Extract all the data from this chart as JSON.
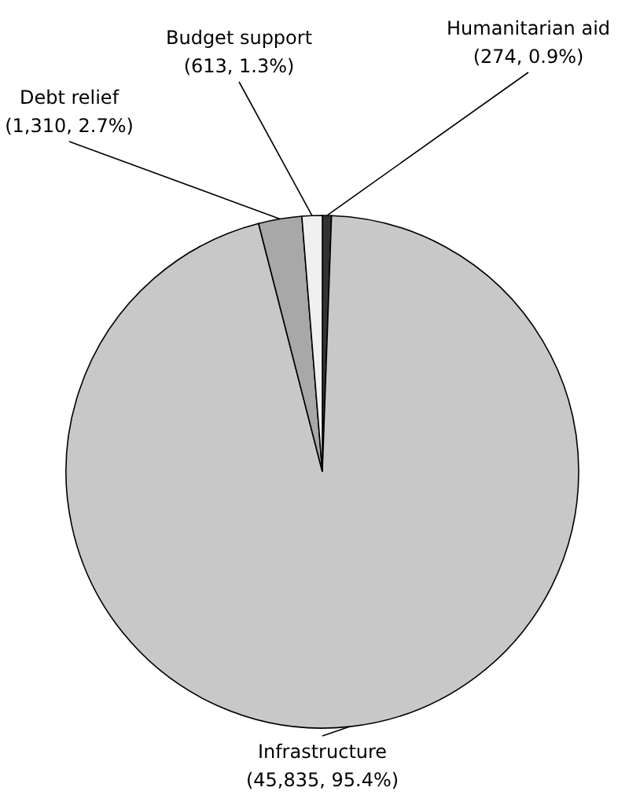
{
  "chart_data": {
    "type": "pie",
    "categories": [
      "Humanitarian aid",
      "Infrastructure",
      "Debt relief",
      "Budget support"
    ],
    "values": [
      274,
      45835,
      1310,
      613
    ],
    "value_labels": [
      "(274, 0.9%)",
      "(45,835, 95.4%)",
      "(1,310, 2.7%)",
      "(613, 1.3%)"
    ],
    "colors": [
      "#333333",
      "#c8c8c8",
      "#a8a8a8",
      "#f0f0f0"
    ]
  }
}
